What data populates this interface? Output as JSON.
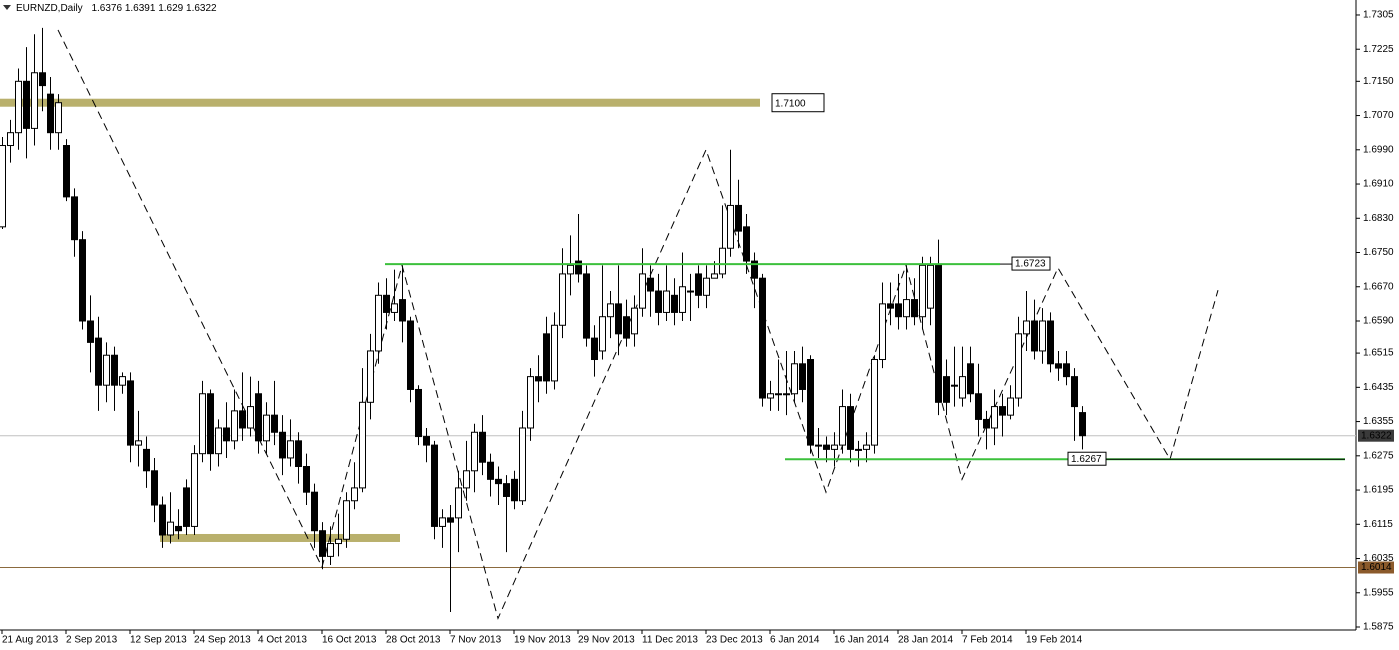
{
  "chart_data": {
    "type": "candlestick",
    "symbol": "EURNZD,Daily",
    "up_color": "#ffffff",
    "down_color": "#000000",
    "ylim": [
      1.5868,
      1.734
    ],
    "yticks": [
      1.7305,
      1.7225,
      {
        "value": 1.715,
        "label": "1.7150"
      },
      {
        "value": 1.707,
        "label": "1.7070"
      },
      {
        "value": 1.699,
        "label": "1.6990"
      },
      {
        "value": 1.691,
        "label": "1.6910"
      },
      {
        "value": 1.683,
        "label": "1.6830"
      },
      {
        "value": 1.675,
        "label": "1.6750"
      },
      {
        "value": 1.667,
        "label": "1.6670"
      },
      {
        "value": 1.659,
        "label": "1.6590"
      },
      1.6515,
      1.6435,
      1.6355,
      1.6275,
      1.6195,
      1.6115,
      1.6035,
      1.5955,
      1.5875
    ],
    "xlim": [
      -0.25,
      169.25
    ],
    "xticks": [
      {
        "value": 0,
        "label": "21 Aug 2013"
      },
      {
        "value": 8,
        "label": "2 Sep 2013"
      },
      {
        "value": 16,
        "label": "12 Sep 2013"
      },
      {
        "value": 24,
        "label": "24 Sep 2013"
      },
      {
        "value": 32,
        "label": "4 Oct 2013"
      },
      {
        "value": 40,
        "label": "16 Oct 2013"
      },
      {
        "value": 48,
        "label": "28 Oct 2013"
      },
      {
        "value": 56,
        "label": "7 Nov 2013"
      },
      {
        "value": 64,
        "label": "19 Nov 2013"
      },
      {
        "value": 72,
        "label": "29 Nov 2013"
      },
      {
        "value": 80,
        "label": "11 Dec 2013"
      },
      {
        "value": 88,
        "label": "23 Dec 2013"
      },
      {
        "value": 96,
        "label": "6 Jan 2014"
      },
      {
        "value": 104,
        "label": "16 Jan 2014"
      },
      {
        "value": 112,
        "label": "28 Jan 2014"
      },
      {
        "value": 120,
        "label": "7 Feb 2014"
      },
      {
        "value": 128,
        "label": "19 Feb 2014"
      }
    ],
    "ohlc": [
      [
        1.681,
        1.702,
        1.6805,
        1.7
      ],
      [
        1.7,
        1.706,
        1.696,
        1.703
      ],
      [
        1.703,
        1.718,
        1.699,
        1.715
      ],
      [
        1.715,
        1.723,
        1.697,
        1.704
      ],
      [
        1.704,
        1.726,
        1.7,
        1.717
      ],
      [
        1.717,
        1.7275,
        1.708,
        1.714
      ],
      [
        1.712,
        1.716,
        1.699,
        1.703
      ],
      [
        1.703,
        1.712,
        1.699,
        1.71
      ],
      [
        1.7,
        1.7015,
        1.687,
        1.688
      ],
      [
        1.688,
        1.69,
        1.674,
        1.678
      ],
      [
        1.678,
        1.68,
        1.657,
        1.659
      ],
      [
        1.659,
        1.665,
        1.647,
        1.654
      ],
      [
        1.655,
        1.66,
        1.638,
        1.644
      ],
      [
        1.644,
        1.654,
        1.64,
        1.651
      ],
      [
        1.651,
        1.653,
        1.638,
        1.644
      ],
      [
        1.644,
        1.647,
        1.642,
        1.646
      ],
      [
        1.645,
        1.647,
        1.626,
        1.63
      ],
      [
        1.63,
        1.638,
        1.625,
        1.631
      ],
      [
        1.629,
        1.632,
        1.62,
        1.624
      ],
      [
        1.624,
        1.627,
        1.612,
        1.616
      ],
      [
        1.616,
        1.618,
        1.606,
        1.609
      ],
      [
        1.609,
        1.619,
        1.607,
        1.612
      ],
      [
        1.611,
        1.615,
        1.608,
        1.61
      ],
      [
        1.62,
        1.622,
        1.609,
        1.611
      ],
      [
        1.611,
        1.63,
        1.609,
        1.628
      ],
      [
        1.628,
        1.645,
        1.626,
        1.642
      ],
      [
        1.642,
        1.643,
        1.624,
        1.628
      ],
      [
        1.628,
        1.636,
        1.625,
        1.634
      ],
      [
        1.634,
        1.64,
        1.627,
        1.631
      ],
      [
        1.631,
        1.643,
        1.629,
        1.638
      ],
      [
        1.638,
        1.647,
        1.631,
        1.634
      ],
      [
        1.634,
        1.646,
        1.632,
        1.639
      ],
      [
        1.642,
        1.645,
        1.628,
        1.631
      ],
      [
        1.631,
        1.64,
        1.628,
        1.637
      ],
      [
        1.637,
        1.645,
        1.63,
        1.633
      ],
      [
        1.633,
        1.637,
        1.623,
        1.627
      ],
      [
        1.627,
        1.636,
        1.625,
        1.631
      ],
      [
        1.631,
        1.633,
        1.621,
        1.625
      ],
      [
        1.625,
        1.628,
        1.616,
        1.619
      ],
      [
        1.619,
        1.621,
        1.606,
        1.61
      ],
      [
        1.61,
        1.612,
        1.601,
        1.604
      ],
      [
        1.604,
        1.611,
        1.602,
        1.607
      ],
      [
        1.607,
        1.614,
        1.604,
        1.608
      ],
      [
        1.608,
        1.619,
        1.606,
        1.617
      ],
      [
        1.617,
        1.626,
        1.615,
        1.62
      ],
      [
        1.62,
        1.648,
        1.619,
        1.64
      ],
      [
        1.64,
        1.656,
        1.636,
        1.652
      ],
      [
        1.652,
        1.668,
        1.649,
        1.665
      ],
      [
        1.665,
        1.669,
        1.657,
        1.661
      ],
      [
        1.661,
        1.671,
        1.659,
        1.663
      ],
      [
        1.664,
        1.672,
        1.654,
        1.659
      ],
      [
        1.659,
        1.66,
        1.64,
        1.643
      ],
      [
        1.643,
        1.644,
        1.63,
        1.632
      ],
      [
        1.632,
        1.634,
        1.626,
        1.63
      ],
      [
        1.63,
        1.631,
        1.608,
        1.611
      ],
      [
        1.611,
        1.615,
        1.606,
        1.613
      ],
      [
        1.613,
        1.616,
        1.591,
        1.612
      ],
      [
        1.613,
        1.624,
        1.605,
        1.62
      ],
      [
        1.62,
        1.631,
        1.617,
        1.624
      ],
      [
        1.624,
        1.635,
        1.619,
        1.633
      ],
      [
        1.633,
        1.637,
        1.623,
        1.626
      ],
      [
        1.626,
        1.628,
        1.618,
        1.622
      ],
      [
        1.622,
        1.625,
        1.616,
        1.621
      ],
      [
        1.621,
        1.623,
        1.605,
        1.618
      ],
      [
        1.622,
        1.624,
        1.615,
        1.617
      ],
      [
        1.617,
        1.638,
        1.616,
        1.634
      ],
      [
        1.634,
        1.648,
        1.631,
        1.646
      ],
      [
        1.646,
        1.651,
        1.64,
        1.645
      ],
      [
        1.656,
        1.66,
        1.642,
        1.645
      ],
      [
        1.645,
        1.661,
        1.643,
        1.658
      ],
      [
        1.658,
        1.676,
        1.655,
        1.67
      ],
      [
        1.67,
        1.679,
        1.665,
        1.672
      ],
      [
        1.673,
        1.684,
        1.668,
        1.67
      ],
      [
        1.67,
        1.672,
        1.653,
        1.655
      ],
      [
        1.655,
        1.658,
        1.646,
        1.65
      ],
      [
        1.652,
        1.672,
        1.65,
        1.66
      ],
      [
        1.66,
        1.666,
        1.655,
        1.663
      ],
      [
        1.663,
        1.672,
        1.651,
        1.656
      ],
      [
        1.66,
        1.664,
        1.653,
        1.655
      ],
      [
        1.656,
        1.665,
        1.653,
        1.662
      ],
      [
        1.662,
        1.676,
        1.66,
        1.67
      ],
      [
        1.669,
        1.672,
        1.66,
        1.666
      ],
      [
        1.666,
        1.67,
        1.658,
        1.661
      ],
      [
        1.661,
        1.672,
        1.659,
        1.666
      ],
      [
        1.665,
        1.669,
        1.658,
        1.661
      ],
      [
        1.661,
        1.675,
        1.659,
        1.667
      ],
      [
        1.666,
        1.67,
        1.659,
        1.666
      ],
      [
        1.67,
        1.672,
        1.662,
        1.665
      ],
      [
        1.665,
        1.672,
        1.662,
        1.669
      ],
      [
        1.669,
        1.673,
        1.669,
        1.67
      ],
      [
        1.67,
        1.686,
        1.669,
        1.676
      ],
      [
        1.676,
        1.699,
        1.674,
        1.686
      ],
      [
        1.686,
        1.692,
        1.676,
        1.68
      ],
      [
        1.681,
        1.684,
        1.67,
        1.673
      ],
      [
        1.673,
        1.675,
        1.662,
        1.669
      ],
      [
        1.669,
        1.67,
        1.639,
        1.641
      ],
      [
        1.641,
        1.645,
        1.638,
        1.642
      ],
      [
        1.642,
        1.65,
        1.638,
        1.642
      ],
      [
        1.642,
        1.652,
        1.637,
        1.642
      ],
      [
        1.642,
        1.652,
        1.64,
        1.649
      ],
      [
        1.649,
        1.653,
        1.64,
        1.643
      ],
      [
        1.65,
        1.651,
        1.628,
        1.63
      ],
      [
        1.63,
        1.634,
        1.627,
        1.63
      ],
      [
        1.63,
        1.632,
        1.626,
        1.629
      ],
      [
        1.629,
        1.633,
        1.625,
        1.63
      ],
      [
        1.63,
        1.643,
        1.628,
        1.639
      ],
      [
        1.639,
        1.642,
        1.626,
        1.629
      ],
      [
        1.629,
        1.631,
        1.625,
        1.629
      ],
      [
        1.629,
        1.633,
        1.626,
        1.63
      ],
      [
        1.63,
        1.651,
        1.628,
        1.65
      ],
      [
        1.65,
        1.668,
        1.648,
        1.663
      ],
      [
        1.663,
        1.668,
        1.658,
        1.662
      ],
      [
        1.663,
        1.67,
        1.657,
        1.66
      ],
      [
        1.66,
        1.672,
        1.657,
        1.664
      ],
      [
        1.664,
        1.669,
        1.658,
        1.66
      ],
      [
        1.66,
        1.674,
        1.657,
        1.672
      ],
      [
        1.662,
        1.674,
        1.658,
        1.672
      ],
      [
        1.672,
        1.678,
        1.637,
        1.64
      ],
      [
        1.646,
        1.65,
        1.637,
        1.64
      ],
      [
        1.644,
        1.653,
        1.639,
        1.644
      ],
      [
        1.641,
        1.653,
        1.639,
        1.646
      ],
      [
        1.649,
        1.653,
        1.64,
        1.642
      ],
      [
        1.642,
        1.649,
        1.632,
        1.636
      ],
      [
        1.636,
        1.638,
        1.629,
        1.634
      ],
      [
        1.634,
        1.643,
        1.63,
        1.639
      ],
      [
        1.639,
        1.642,
        1.632,
        1.637
      ],
      [
        1.637,
        1.644,
        1.636,
        1.641
      ],
      [
        1.641,
        1.66,
        1.639,
        1.656
      ],
      [
        1.656,
        1.666,
        1.652,
        1.659
      ],
      [
        1.659,
        1.664,
        1.65,
        1.652
      ],
      [
        1.652,
        1.662,
        1.649,
        1.659
      ],
      [
        1.659,
        1.661,
        1.647,
        1.649
      ],
      [
        1.649,
        1.652,
        1.645,
        1.648
      ],
      [
        1.649,
        1.652,
        1.644,
        1.646
      ],
      [
        1.646,
        1.648,
        1.631,
        1.639
      ],
      [
        1.6376,
        1.6391,
        1.629,
        1.6322
      ]
    ],
    "zones": [
      {
        "price": 1.71,
        "label": "1.7100",
        "color": "#b9b06c"
      },
      {
        "price": 1.6083,
        "color": "#b9b06c"
      }
    ],
    "levels": [
      {
        "price": 1.6723,
        "color": "#3cc03c"
      },
      {
        "price": 1.6267,
        "color": "#3cc03c"
      }
    ],
    "pattern": {
      "x": [
        7,
        40,
        50,
        62,
        88,
        103,
        113,
        120,
        132,
        146,
        152
      ],
      "y": [
        1.727,
        1.6015,
        1.672,
        1.5895,
        1.699,
        1.619,
        1.672,
        1.622,
        1.6714,
        1.6267,
        1.6662
      ]
    },
    "price_lines": [
      {
        "price": 1.6322,
        "color": "#c0c0c0",
        "label_bg": "#3a3a3a"
      },
      {
        "price": 1.6014,
        "color": "#8b6a3e",
        "label_bg": "#8b5a2b"
      }
    ]
  }
}
